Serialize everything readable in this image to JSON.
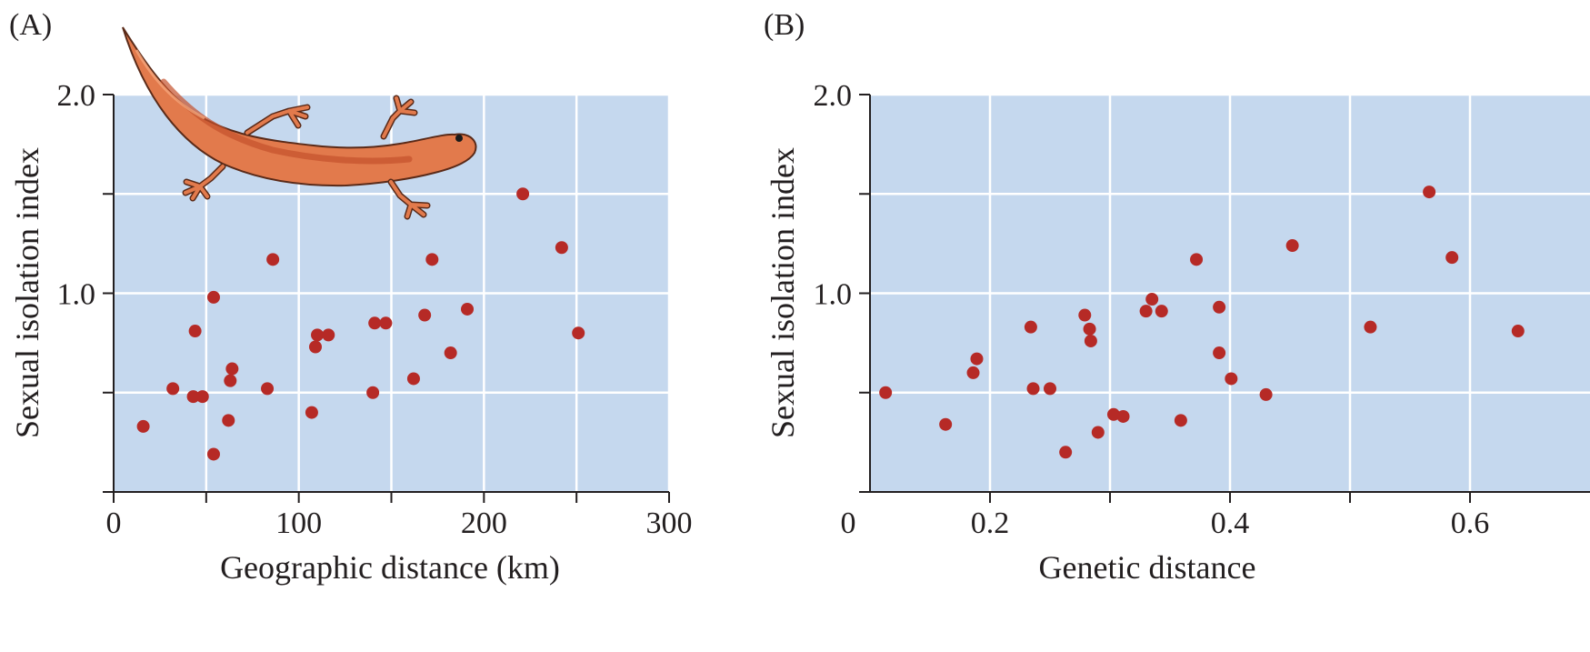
{
  "colors": {
    "plot_background": "#c5d8ee",
    "grid": "#ffffff",
    "point": "#b62a26",
    "axis": "#231f20"
  },
  "illustration": {
    "icon": "salamander-icon"
  },
  "chart_data": [
    {
      "type": "scatter",
      "panel_label": "(A)",
      "xlabel": "Geographic distance (km)",
      "ylabel": "Sexual isolation index",
      "xlim": [
        0,
        300
      ],
      "ylim": [
        0,
        2.0
      ],
      "xticks": [
        0,
        50,
        100,
        150,
        200,
        250,
        300
      ],
      "yticks": [
        0,
        0.5,
        1.0,
        1.5,
        2.0
      ],
      "xtick_labels": [
        "0",
        "",
        "100",
        "",
        "200",
        "",
        "300"
      ],
      "ytick_labels": [
        "",
        "",
        "1.0",
        "",
        "2.0"
      ],
      "grid": true,
      "points": [
        {
          "x": 16,
          "y": 0.33
        },
        {
          "x": 32,
          "y": 0.52
        },
        {
          "x": 43,
          "y": 0.48
        },
        {
          "x": 48,
          "y": 0.48
        },
        {
          "x": 44,
          "y": 0.81
        },
        {
          "x": 54,
          "y": 0.98
        },
        {
          "x": 54,
          "y": 0.19
        },
        {
          "x": 62,
          "y": 0.36
        },
        {
          "x": 63,
          "y": 0.56
        },
        {
          "x": 64,
          "y": 0.62
        },
        {
          "x": 83,
          "y": 0.52
        },
        {
          "x": 86,
          "y": 1.17
        },
        {
          "x": 107,
          "y": 0.4
        },
        {
          "x": 109,
          "y": 0.73
        },
        {
          "x": 110,
          "y": 0.79
        },
        {
          "x": 116,
          "y": 0.79
        },
        {
          "x": 140,
          "y": 0.5
        },
        {
          "x": 141,
          "y": 0.85
        },
        {
          "x": 147,
          "y": 0.85
        },
        {
          "x": 162,
          "y": 0.57
        },
        {
          "x": 168,
          "y": 0.89
        },
        {
          "x": 172,
          "y": 1.17
        },
        {
          "x": 182,
          "y": 0.7
        },
        {
          "x": 191,
          "y": 0.92
        },
        {
          "x": 221,
          "y": 1.5
        },
        {
          "x": 242,
          "y": 1.23
        },
        {
          "x": 251,
          "y": 0.8
        }
      ]
    },
    {
      "type": "scatter",
      "panel_label": "(B)",
      "xlabel": "Genetic distance",
      "ylabel": "Sexual isolation index",
      "xlim": [
        0.1,
        0.7
      ],
      "ylim": [
        0,
        2.0
      ],
      "xticks": [
        0.2,
        0.3,
        0.4,
        0.5,
        0.6
      ],
      "yticks": [
        0,
        0.5,
        1.0,
        1.5,
        2.0
      ],
      "xtick_labels": [
        "0.2",
        "",
        "0.4",
        "",
        "0.6"
      ],
      "ytick_labels": [
        "",
        "",
        "1.0",
        "",
        "2.0"
      ],
      "origin_label": "0",
      "grid": true,
      "points": [
        {
          "x": 0.113,
          "y": 0.5
        },
        {
          "x": 0.163,
          "y": 0.34
        },
        {
          "x": 0.186,
          "y": 0.6
        },
        {
          "x": 0.189,
          "y": 0.67
        },
        {
          "x": 0.234,
          "y": 0.83
        },
        {
          "x": 0.236,
          "y": 0.52
        },
        {
          "x": 0.25,
          "y": 0.52
        },
        {
          "x": 0.263,
          "y": 0.2
        },
        {
          "x": 0.279,
          "y": 0.89
        },
        {
          "x": 0.283,
          "y": 0.82
        },
        {
          "x": 0.284,
          "y": 0.76
        },
        {
          "x": 0.29,
          "y": 0.3
        },
        {
          "x": 0.303,
          "y": 0.39
        },
        {
          "x": 0.311,
          "y": 0.38
        },
        {
          "x": 0.33,
          "y": 0.91
        },
        {
          "x": 0.335,
          "y": 0.97
        },
        {
          "x": 0.343,
          "y": 0.91
        },
        {
          "x": 0.359,
          "y": 0.36
        },
        {
          "x": 0.372,
          "y": 1.17
        },
        {
          "x": 0.391,
          "y": 0.93
        },
        {
          "x": 0.391,
          "y": 0.7
        },
        {
          "x": 0.401,
          "y": 0.57
        },
        {
          "x": 0.43,
          "y": 0.49
        },
        {
          "x": 0.452,
          "y": 1.24
        },
        {
          "x": 0.517,
          "y": 0.83
        },
        {
          "x": 0.566,
          "y": 1.51
        },
        {
          "x": 0.585,
          "y": 1.18
        },
        {
          "x": 0.64,
          "y": 0.81
        }
      ]
    }
  ]
}
